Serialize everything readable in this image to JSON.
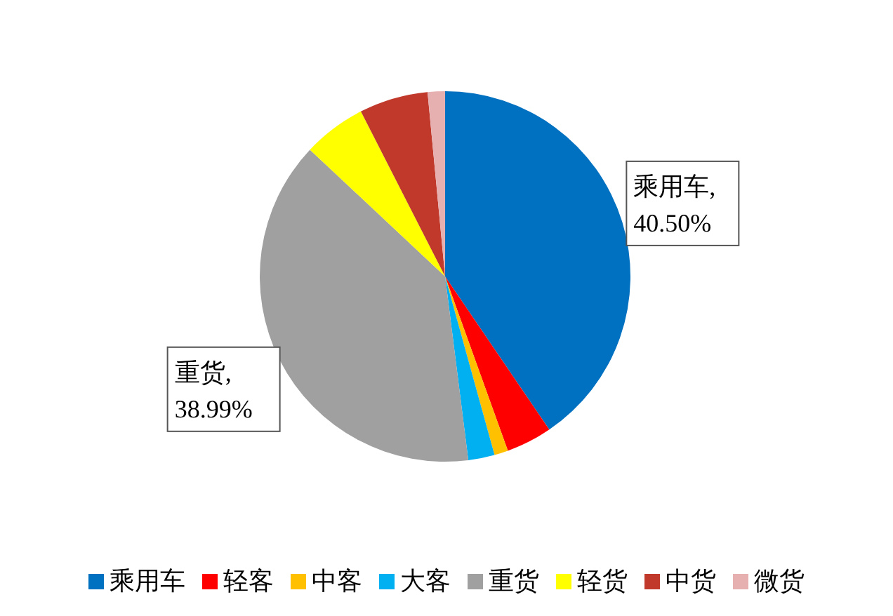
{
  "chart_data": {
    "type": "pie",
    "categories": [
      "乘用车",
      "轻客",
      "中客",
      "大客",
      "重货",
      "轻货",
      "中货",
      "微货"
    ],
    "values": [
      40.5,
      4.0,
      1.2,
      2.3,
      38.99,
      5.5,
      6.0,
      1.51
    ],
    "value_labels": [
      "乘用车,\n40.50%",
      null,
      null,
      null,
      "重货,\n38.99%",
      null,
      null,
      null
    ],
    "colors": [
      "#0070c0",
      "#ff0000",
      "#ffc000",
      "#00b0f0",
      "#a0a0a0",
      "#ffff00",
      "#c0392b",
      "#e6b0b0"
    ],
    "legend": "bottom"
  }
}
